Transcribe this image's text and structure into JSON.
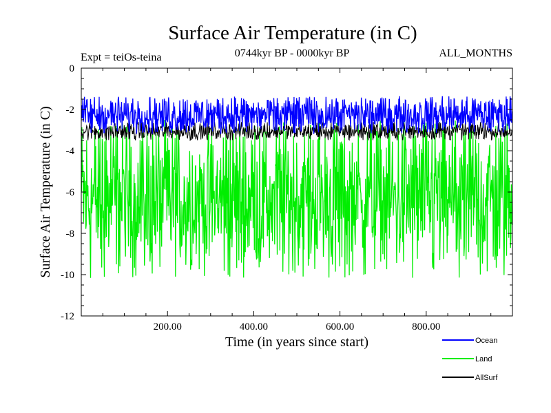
{
  "chart_data": {
    "type": "line",
    "title": "Surface Air Temperature (in C)",
    "experiment_label": "Expt = teiOs-teina",
    "subtitle": "0744kyr BP - 0000kyr BP",
    "months_label": "ALL_MONTHS",
    "xlabel": "Time (in years since start)",
    "ylabel": "Surface Air Temperature (in C)",
    "xlim": [
      0,
      1000
    ],
    "ylim": [
      -12,
      0
    ],
    "x_ticks": [
      200,
      400,
      600,
      800
    ],
    "x_tick_labels": [
      "200.00",
      "400.00",
      "600.00",
      "800.00"
    ],
    "y_ticks": [
      0,
      -2,
      -4,
      -6,
      -8,
      -10,
      -12
    ],
    "y_tick_labels": [
      "0",
      "-2",
      "-4",
      "-6",
      "-8",
      "-10",
      "-12"
    ],
    "legend_position": "bottom-right",
    "series": [
      {
        "name": "Ocean",
        "color": "#0000ff",
        "min": -3.2,
        "max": -1.35,
        "mean": -2.2
      },
      {
        "name": "Land",
        "color": "#00ee00",
        "min": -10.2,
        "max": -2.5,
        "mean": -6.0
      },
      {
        "name": "AllSurf",
        "color": "#000000",
        "min": -3.5,
        "max": -2.6,
        "mean": -2.95
      }
    ]
  }
}
